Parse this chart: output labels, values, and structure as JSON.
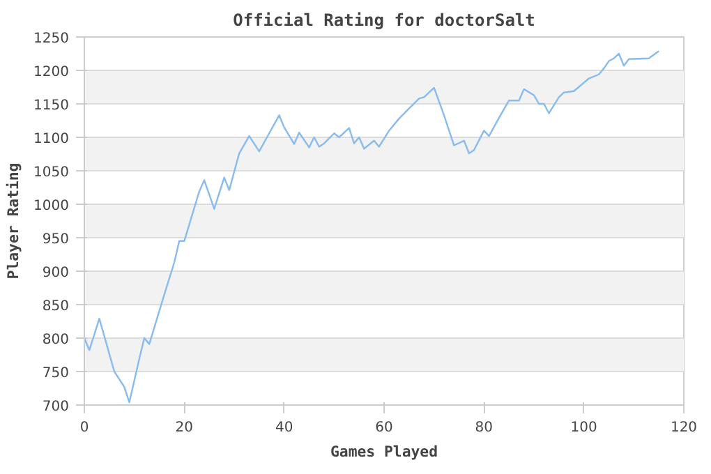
{
  "chart_data": {
    "type": "line",
    "title": "Official Rating for doctorSalt",
    "xlabel": "Games Played",
    "ylabel": "Player Rating",
    "xlim": [
      0,
      120
    ],
    "xticks": [
      0,
      20,
      40,
      60,
      80,
      100,
      120
    ],
    "ylim": [
      700,
      1250
    ],
    "yticks": [
      700,
      750,
      800,
      850,
      900,
      950,
      1000,
      1050,
      1100,
      1150,
      1200,
      1250
    ],
    "grid": "y",
    "marker": "none",
    "line_style": "solid",
    "series": [
      {
        "color": "#88bbee",
        "x": [
          0,
          1,
          3,
          6,
          8,
          9,
          11,
          12,
          13,
          16,
          18,
          19,
          20,
          23,
          24,
          26,
          28,
          29,
          31,
          33,
          35,
          37,
          39,
          40,
          42,
          43,
          45,
          46,
          47,
          48,
          50,
          51,
          53,
          54,
          55,
          56,
          58,
          59,
          61,
          63,
          65,
          67,
          68,
          70,
          72,
          74,
          76,
          77,
          78,
          80,
          81,
          83,
          85,
          87,
          88,
          90,
          91,
          92,
          93,
          95,
          96,
          98,
          101,
          103,
          104,
          105,
          106,
          107,
          108,
          109,
          113,
          115
        ],
        "values": [
          800,
          782,
          829,
          750,
          727,
          704,
          769,
          800,
          791,
          865,
          913,
          945,
          945,
          1019,
          1036,
          993,
          1040,
          1021,
          1076,
          1102,
          1079,
          1106,
          1133,
          1115,
          1090,
          1107,
          1085,
          1100,
          1086,
          1091,
          1106,
          1100,
          1114,
          1091,
          1100,
          1083,
          1095,
          1086,
          1110,
          1128,
          1143,
          1158,
          1160,
          1174,
          1133,
          1088,
          1095,
          1076,
          1081,
          1110,
          1102,
          1129,
          1155,
          1155,
          1172,
          1163,
          1150,
          1150,
          1136,
          1160,
          1167,
          1169,
          1188,
          1194,
          1203,
          1214,
          1218,
          1225,
          1207,
          1217,
          1218,
          1229
        ]
      }
    ]
  }
}
